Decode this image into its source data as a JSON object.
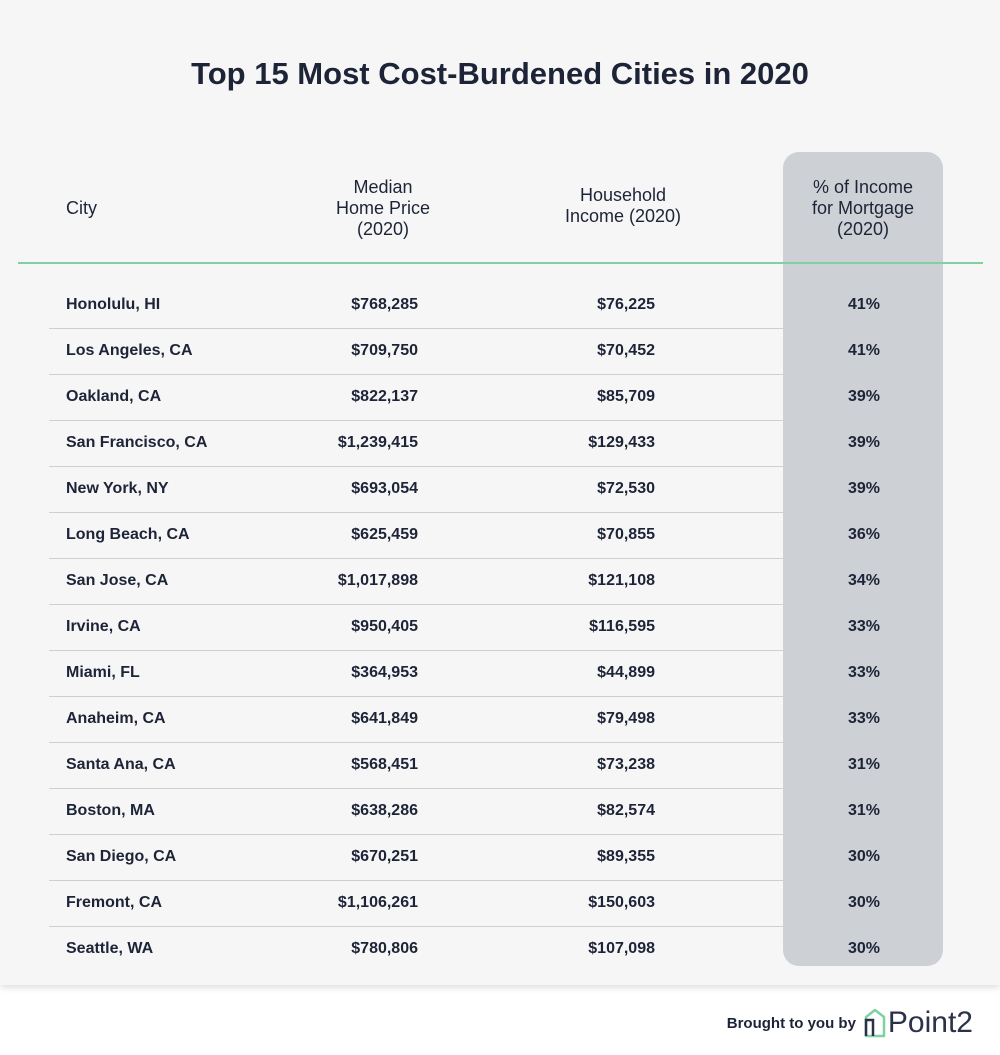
{
  "chart_data": {
    "type": "table",
    "title": "Top 15 Most Cost-Burdened Cities in 2020",
    "columns": [
      "City",
      "Median Home Price (2020)",
      "Household Income (2020)",
      "% of Income for Mortgage (2020)"
    ],
    "header_lines": {
      "city": [
        "City"
      ],
      "price": [
        "Median",
        "Home Price",
        "(2020)"
      ],
      "income": [
        "Household",
        "Income (2020)"
      ],
      "pct": [
        "% of Income",
        "for Mortgage",
        "(2020)"
      ]
    },
    "rows": [
      {
        "city": "Honolulu, HI",
        "price": "$768,285",
        "income": "$76,225",
        "pct": "41%"
      },
      {
        "city": "Los Angeles, CA",
        "price": "$709,750",
        "income": "$70,452",
        "pct": "41%"
      },
      {
        "city": "Oakland, CA",
        "price": "$822,137",
        "income": "$85,709",
        "pct": "39%"
      },
      {
        "city": "San Francisco, CA",
        "price": "$1,239,415",
        "income": "$129,433",
        "pct": "39%"
      },
      {
        "city": "New York, NY",
        "price": "$693,054",
        "income": "$72,530",
        "pct": "39%"
      },
      {
        "city": "Long Beach, CA",
        "price": "$625,459",
        "income": "$70,855",
        "pct": "36%"
      },
      {
        "city": "San Jose, CA",
        "price": "$1,017,898",
        "income": "$121,108",
        "pct": "34%"
      },
      {
        "city": "Irvine, CA",
        "price": "$950,405",
        "income": "$116,595",
        "pct": "33%"
      },
      {
        "city": "Miami, FL",
        "price": "$364,953",
        "income": "$44,899",
        "pct": "33%"
      },
      {
        "city": "Anaheim, CA",
        "price": "$641,849",
        "income": "$79,498",
        "pct": "33%"
      },
      {
        "city": "Santa Ana, CA",
        "price": "$568,451",
        "income": "$73,238",
        "pct": "31%"
      },
      {
        "city": "Boston, MA",
        "price": "$638,286",
        "income": "$82,574",
        "pct": "31%"
      },
      {
        "city": "San Diego, CA",
        "price": "$670,251",
        "income": "$89,355",
        "pct": "30%"
      },
      {
        "city": "Fremont, CA",
        "price": "$1,106,261",
        "income": "$150,603",
        "pct": "30%"
      },
      {
        "city": "Seattle, WA",
        "price": "$780,806",
        "income": "$107,098",
        "pct": "30%"
      }
    ]
  },
  "footer": {
    "brought_by": "Brought to you by",
    "logo_text": "Point2",
    "logo_icon": "house-outline-icon"
  },
  "colors": {
    "title": "#1d2437",
    "accent_line": "#7fd1a2",
    "highlight_column": "#cdd0d5",
    "background": "#f6f6f6"
  }
}
